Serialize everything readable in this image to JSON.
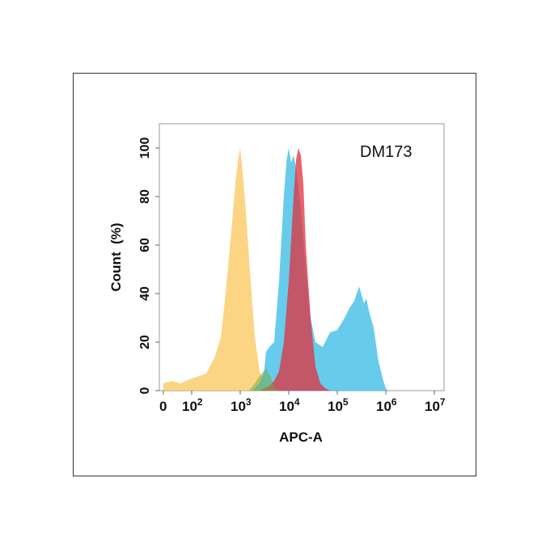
{
  "chart_data": {
    "type": "area",
    "title": "DM173",
    "xlabel": "APC-A",
    "ylabel": "Count  (%)",
    "x_scale": "biexponential",
    "xlim": [
      0,
      10000000
    ],
    "ylim": [
      0,
      110
    ],
    "grid": false,
    "legend": "none",
    "x_ticks": [
      {
        "value": 0,
        "base": "0",
        "exp": ""
      },
      {
        "value": 100,
        "base": "10",
        "exp": "2"
      },
      {
        "value": 1000,
        "base": "10",
        "exp": "3"
      },
      {
        "value": 10000,
        "base": "10",
        "exp": "4"
      },
      {
        "value": 100000,
        "base": "10",
        "exp": "5"
      },
      {
        "value": 1000000,
        "base": "10",
        "exp": "6"
      },
      {
        "value": 10000000,
        "base": "10",
        "exp": "7"
      }
    ],
    "y_ticks": [
      {
        "value": 0,
        "label": "0"
      },
      {
        "value": 20,
        "label": "20"
      },
      {
        "value": 40,
        "label": "40"
      },
      {
        "value": 60,
        "label": "60"
      },
      {
        "value": 80,
        "label": "80"
      },
      {
        "value": 100,
        "label": "100"
      }
    ],
    "series": [
      {
        "color": "#f9c75a",
        "opacity": 0.75,
        "points": [
          [
            0,
            3
          ],
          [
            30,
            4
          ],
          [
            60,
            3
          ],
          [
            100,
            5
          ],
          [
            200,
            7
          ],
          [
            300,
            14
          ],
          [
            400,
            22
          ],
          [
            500,
            40
          ],
          [
            630,
            62
          ],
          [
            800,
            86
          ],
          [
            900,
            95
          ],
          [
            1000,
            100
          ],
          [
            1100,
            92
          ],
          [
            1300,
            75
          ],
          [
            1600,
            48
          ],
          [
            2000,
            22
          ],
          [
            2500,
            8
          ],
          [
            3200,
            3
          ],
          [
            4000,
            1
          ],
          [
            5000,
            0
          ],
          [
            6000,
            0
          ]
        ]
      },
      {
        "color": "#4cc3e8",
        "opacity": 0.85,
        "points": [
          [
            1800,
            0
          ],
          [
            2500,
            3
          ],
          [
            3100,
            8
          ],
          [
            3400,
            16
          ],
          [
            4000,
            18
          ],
          [
            5000,
            20
          ],
          [
            6300,
            45
          ],
          [
            7900,
            80
          ],
          [
            9000,
            95
          ],
          [
            10000,
            100
          ],
          [
            11200,
            94
          ],
          [
            12600,
            97
          ],
          [
            14100,
            92
          ],
          [
            17800,
            75
          ],
          [
            22400,
            50
          ],
          [
            28200,
            30
          ],
          [
            35500,
            20
          ],
          [
            50100,
            18
          ],
          [
            70800,
            24
          ],
          [
            100000,
            25
          ],
          [
            141000,
            30
          ],
          [
            178000,
            34
          ],
          [
            224000,
            37
          ],
          [
            282000,
            43
          ],
          [
            355000,
            36
          ],
          [
            398000,
            38
          ],
          [
            447000,
            33
          ],
          [
            562000,
            26
          ],
          [
            708000,
            12
          ],
          [
            891000,
            4
          ],
          [
            1000000,
            1
          ],
          [
            1120000,
            0
          ]
        ]
      },
      {
        "color": "#e0303c",
        "opacity": 0.75,
        "points": [
          [
            2500,
            0
          ],
          [
            4000,
            2
          ],
          [
            5000,
            4
          ],
          [
            6300,
            8
          ],
          [
            7900,
            20
          ],
          [
            10000,
            45
          ],
          [
            12600,
            80
          ],
          [
            14100,
            95
          ],
          [
            15800,
            100
          ],
          [
            17800,
            97
          ],
          [
            20000,
            85
          ],
          [
            22400,
            60
          ],
          [
            28200,
            30
          ],
          [
            35500,
            10
          ],
          [
            44700,
            3
          ],
          [
            56200,
            1
          ],
          [
            70800,
            0
          ]
        ]
      },
      {
        "color": "#7aa83a",
        "opacity": 0.5,
        "points": [
          [
            1500,
            0
          ],
          [
            2000,
            3
          ],
          [
            2500,
            6
          ],
          [
            3000,
            8
          ],
          [
            3500,
            9
          ],
          [
            4000,
            7
          ],
          [
            4500,
            4
          ],
          [
            5000,
            1
          ],
          [
            6000,
            0
          ]
        ]
      }
    ]
  }
}
